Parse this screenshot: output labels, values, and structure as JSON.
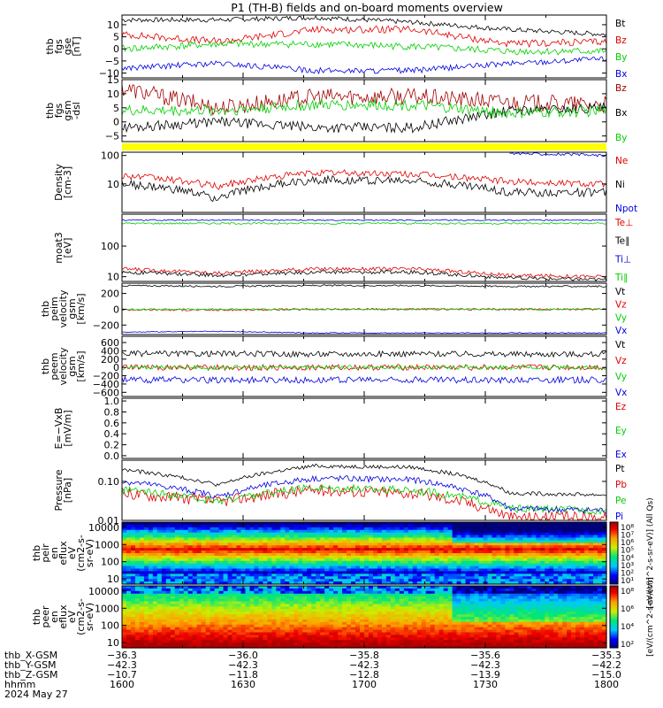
{
  "title": "P1 (TH-B) fields and on-board moments overview",
  "colors": {
    "black": "#000000",
    "red": "#e00000",
    "green": "#00d000",
    "blue": "#0000e0",
    "darkred": "#a00000",
    "yellow": "#ffff00"
  },
  "chart_data": {
    "type": "line",
    "time_range": [
      "1600",
      "1800"
    ],
    "panels": [
      {
        "id": "fgs_gse",
        "ylabel": [
          "thb",
          "fgs",
          "gse",
          "[nT]"
        ],
        "yrange": [
          -12,
          14
        ],
        "yticks": [
          {
            "v": 10,
            "t": "10"
          },
          {
            "v": 5,
            "t": "5"
          },
          {
            "v": 0,
            "t": "0"
          },
          {
            "v": -5,
            "t": "−5"
          },
          {
            "v": -10,
            "t": "−10"
          }
        ],
        "series": [
          {
            "name": "Bt",
            "color": "#000000",
            "level": [
              12,
              12,
              13,
              11,
              8,
              6
            ],
            "noise": 1.0
          },
          {
            "name": "Bz",
            "color": "#e00000",
            "level": [
              6,
              3,
              8,
              8,
              2,
              3
            ],
            "noise": 1.5
          },
          {
            "name": "By",
            "color": "#00d000",
            "level": [
              0,
              2,
              2,
              1,
              -1,
              -1
            ],
            "noise": 1.5
          },
          {
            "name": "Bx",
            "color": "#0000e0",
            "level": [
              -8,
              -6,
              -9,
              -9,
              -6,
              -4
            ],
            "noise": 1.2
          }
        ]
      },
      {
        "id": "fgs_gsm",
        "ylabel": [
          "thb",
          "fgs",
          "gsm",
          "-dsl"
        ],
        "yrange": [
          -7,
          15
        ],
        "yticks": [
          {
            "v": 15,
            "t": "15"
          },
          {
            "v": 10,
            "t": "10"
          },
          {
            "v": 5,
            "t": "5"
          },
          {
            "v": 0,
            "t": "0"
          },
          {
            "v": -5,
            "t": "−5"
          }
        ],
        "series": [
          {
            "name": "Bz",
            "color": "#a00000",
            "level": [
              12,
              5,
              9,
              9,
              7,
              6
            ],
            "noise": 3
          },
          {
            "name": "Bx",
            "color": "#000000",
            "level": [
              -2,
              0,
              -2,
              -2,
              4,
              5
            ],
            "noise": 1.8
          },
          {
            "name": "By",
            "color": "#00d000",
            "level": [
              4,
              4,
              6,
              6,
              3,
              4
            ],
            "noise": 2
          }
        ]
      },
      {
        "id": "flags",
        "ylabel": [],
        "yrange": [
          0,
          1
        ],
        "yticks": [],
        "flag": true,
        "series": []
      },
      {
        "id": "density",
        "ylabel": [
          "Density",
          "[cm-3]"
        ],
        "log": true,
        "yrange": [
          1,
          130
        ],
        "yticks": [
          {
            "v": 100,
            "t": "100"
          },
          {
            "v": 10,
            "t": "10"
          }
        ],
        "series": [
          {
            "name": "Ne",
            "color": "#e00000",
            "level": [
              20,
              8,
              25,
              22,
              12,
              10
            ],
            "noise": 0.12
          },
          {
            "name": "Ni",
            "color": "#000000",
            "level": [
              10,
              3,
              14,
              13,
              5,
              5
            ],
            "noise": 0.15
          },
          {
            "name": "Npot",
            "color": "#0000e0",
            "level": [
              null,
              null,
              null,
              null,
              120,
              100
            ],
            "noise": 0.05
          }
        ]
      },
      {
        "id": "temps",
        "ylabel": [
          "moat3",
          "[eV]"
        ],
        "log": true,
        "yrange": [
          7,
          1100
        ],
        "yticks": [
          {
            "v": 100,
            "t": "100"
          },
          {
            "v": 10,
            "t": "10"
          }
        ],
        "series": [
          {
            "name": "Te⊥",
            "color": "#e00000",
            "level": [
              18,
              13,
              18,
              18,
              11,
              10
            ],
            "noise": 0.06
          },
          {
            "name": "Te∥",
            "color": "#000000",
            "level": [
              14,
              11,
              14,
              14,
              9,
              8
            ],
            "noise": 0.06
          },
          {
            "name": "Ti⊥",
            "color": "#0000e0",
            "level": [
              700,
              700,
              700,
              700,
              700,
              700
            ],
            "noise": 0.02
          },
          {
            "name": "Ti∥",
            "color": "#00d000",
            "level": [
              550,
              550,
              550,
              550,
              550,
              550
            ],
            "noise": 0.03
          }
        ]
      },
      {
        "id": "peim_vel",
        "ylabel": [
          "thb",
          "peim",
          "velocity",
          "gsm",
          "[km/s]"
        ],
        "yrange": [
          -320,
          330
        ],
        "yticks": [
          {
            "v": 200,
            "t": "200"
          },
          {
            "v": 0,
            "t": "0"
          },
          {
            "v": -200,
            "t": "−200"
          }
        ],
        "series": [
          {
            "name": "Vt",
            "color": "#000000",
            "level": [
              300,
              290,
              300,
              300,
              290,
              290
            ],
            "noise": 10
          },
          {
            "name": "Vz",
            "color": "#e00000",
            "level": [
              -5,
              -10,
              0,
              0,
              0,
              0
            ],
            "noise": 12
          },
          {
            "name": "Vy",
            "color": "#00d000",
            "level": [
              0,
              0,
              0,
              0,
              0,
              0
            ],
            "noise": 10
          },
          {
            "name": "Vx",
            "color": "#0000e0",
            "level": [
              -290,
              -280,
              -300,
              -300,
              -300,
              -300
            ],
            "noise": 6
          }
        ]
      },
      {
        "id": "peem_vel",
        "ylabel": [
          "thb",
          "peem",
          "velocity",
          "gsm",
          "[km/s]"
        ],
        "yrange": [
          -700,
          750
        ],
        "yticks": [
          {
            "v": 600,
            "t": "600"
          },
          {
            "v": 400,
            "t": "400"
          },
          {
            "v": 200,
            "t": "200"
          },
          {
            "v": 0,
            "t": "0"
          },
          {
            "v": -200,
            "t": "−200"
          },
          {
            "v": -400,
            "t": "−400"
          },
          {
            "v": -600,
            "t": "−600"
          }
        ],
        "series": [
          {
            "name": "Vt",
            "color": "#000000",
            "level": [
              330,
              330,
              320,
              330,
              320,
              320
            ],
            "noise": 70
          },
          {
            "name": "Vz",
            "color": "#e00000",
            "level": [
              0,
              0,
              0,
              0,
              0,
              0
            ],
            "noise": 70
          },
          {
            "name": "Vy",
            "color": "#00d000",
            "level": [
              0,
              0,
              0,
              0,
              0,
              0
            ],
            "noise": 50
          },
          {
            "name": "Vx",
            "color": "#0000e0",
            "level": [
              -300,
              -300,
              -300,
              -300,
              -300,
              -300
            ],
            "noise": 80
          }
        ]
      },
      {
        "id": "efield",
        "ylabel": [
          "E=−VxB",
          "[mV/m]"
        ],
        "yrange": [
          -0.05,
          1.05
        ],
        "yticks": [
          {
            "v": 1.0,
            "t": "1.0"
          },
          {
            "v": 0.8,
            "t": "0.8"
          },
          {
            "v": 0.6,
            "t": "0.6"
          },
          {
            "v": 0.4,
            "t": "0.4"
          },
          {
            "v": 0.2,
            "t": "0.2"
          },
          {
            "v": 0.0,
            "t": "0.0"
          }
        ],
        "series": [
          {
            "name": "Ez",
            "color": "#e00000"
          },
          {
            "name": "Ey",
            "color": "#00d000"
          },
          {
            "name": "Ex",
            "color": "#0000e0"
          }
        ]
      },
      {
        "id": "pressure",
        "ylabel": [
          "Pressure",
          "[nPa]"
        ],
        "log": true,
        "yrange": [
          0.01,
          0.35
        ],
        "yticks": [
          {
            "v": 0.1,
            "t": "0.10"
          },
          {
            "v": 0.01,
            "t": "0.01"
          }
        ],
        "series": [
          {
            "name": "Pt",
            "color": "#000000",
            "level": [
              0.2,
              0.08,
              0.25,
              0.23,
              0.05,
              0.045
            ],
            "noise": 0.05
          },
          {
            "name": "Pb",
            "color": "#e00000",
            "level": [
              0.05,
              0.03,
              0.06,
              0.05,
              0.012,
              0.012
            ],
            "noise": 0.15
          },
          {
            "name": "Pe",
            "color": "#00d000",
            "level": [
              0.06,
              0.03,
              0.07,
              0.06,
              0.02,
              0.018
            ],
            "noise": 0.1
          },
          {
            "name": "Pi",
            "color": "#0000e0",
            "level": [
              0.1,
              0.04,
              0.12,
              0.11,
              0.02,
              0.018
            ],
            "noise": 0.08
          }
        ]
      },
      {
        "id": "peir",
        "ylabel": [
          "thb",
          "peir",
          "en",
          "eflux",
          "eV",
          "(cm2-s-",
          "sr-eV)"
        ],
        "log": true,
        "yrange": [
          5,
          20000
        ],
        "spec": "ion",
        "yticks": [
          {
            "v": 10000,
            "t": "10000"
          },
          {
            "v": 1000,
            "t": "1000"
          },
          {
            "v": 100,
            "t": "100"
          },
          {
            "v": 10,
            "t": "10"
          }
        ]
      },
      {
        "id": "peer",
        "ylabel": [
          "thb",
          "peer",
          "en",
          "eflux",
          "eV",
          "(cm2-s-",
          "sr-eV)"
        ],
        "log": true,
        "yrange": [
          5,
          20000
        ],
        "spec": "ele",
        "yticks": [
          {
            "v": 10000,
            "t": "10000"
          },
          {
            "v": 1000,
            "t": "1000"
          },
          {
            "v": 100,
            "t": "100"
          },
          {
            "v": 10,
            "t": "10"
          }
        ]
      }
    ],
    "colorbars": [
      {
        "ticks": [
          "10⁸",
          "10⁷",
          "10⁶",
          "10⁵",
          "10⁴",
          "10³",
          "10²",
          "10¹"
        ],
        "label": "[eV/(cm^2-s-sr-eV)] (All Qs)"
      },
      {
        "ticks": [
          "10⁸",
          "10⁶",
          "10⁴",
          "10²"
        ],
        "label": "[eV/(cm^2-s-sr-eV)]"
      }
    ],
    "footer": {
      "rows": [
        {
          "label": "thb_X-GSM",
          "values": [
            "−36.3",
            "−36.0",
            "−35.8",
            "−35.6",
            "−35.3"
          ]
        },
        {
          "label": "thb_Y-GSM",
          "values": [
            "−42.3",
            "−42.3",
            "−42.3",
            "−42.3",
            "−42.2"
          ]
        },
        {
          "label": "thb_Z-GSM",
          "values": [
            "−10.7",
            "−11.8",
            "−12.8",
            "−13.9",
            "−15.0"
          ]
        },
        {
          "label": "hhmm",
          "values": [
            "1600",
            "1630",
            "1700",
            "1730",
            "1800"
          ]
        }
      ],
      "date": "2024 May 27"
    }
  }
}
